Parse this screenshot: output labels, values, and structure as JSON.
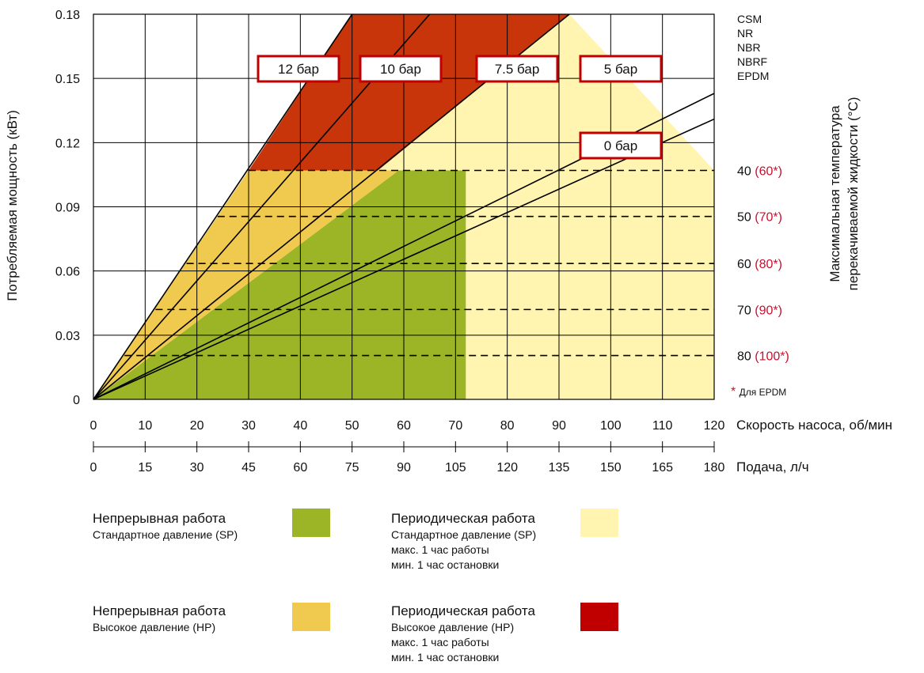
{
  "chart_data": {
    "type": "line",
    "ylabel": "Потребляемая мощность (кВт)",
    "xlabel": "Скорость насоса, об/мин",
    "x2label": "Подача, л/ч",
    "right_label_line1": "Максимальная температура",
    "right_label_line2": "перекачиваемой жидкости (°C)",
    "ylim": [
      0,
      0.18
    ],
    "xlim": [
      0,
      120
    ],
    "y_ticks": [
      "0",
      "0.03",
      "0.06",
      "0.09",
      "0.12",
      "0.15",
      "0.18"
    ],
    "x_ticks": [
      "0",
      "10",
      "20",
      "30",
      "40",
      "50",
      "60",
      "70",
      "80",
      "90",
      "100",
      "110",
      "120"
    ],
    "x2_ticks": [
      "0",
      "15",
      "30",
      "45",
      "60",
      "75",
      "90",
      "105",
      "120",
      "135",
      "150",
      "165",
      "180"
    ],
    "grid": true,
    "series": [
      {
        "name": "12 бар",
        "x": [
          0,
          50
        ],
        "y": [
          0,
          0.18
        ]
      },
      {
        "name": "10 бар",
        "x": [
          0,
          65
        ],
        "y": [
          0,
          0.18
        ]
      },
      {
        "name": "7.5 бар",
        "x": [
          0,
          92
        ],
        "y": [
          0,
          0.18
        ]
      },
      {
        "name": "5 бар",
        "x": [
          0,
          120
        ],
        "y": [
          0,
          0.143
        ]
      },
      {
        "name": "0 бар",
        "x": [
          0,
          120
        ],
        "y": [
          0,
          0.131
        ]
      }
    ],
    "regions": [
      {
        "name": "continuous_sp",
        "color": "#9bb527",
        "points": [
          [
            0,
            0
          ],
          [
            72,
            0
          ],
          [
            72,
            0.107
          ],
          [
            59,
            0.107
          ]
        ]
      },
      {
        "name": "continuous_hp",
        "color": "#f0c94f",
        "points": [
          [
            0,
            0
          ],
          [
            59,
            0.107
          ],
          [
            30,
            0.107
          ]
        ]
      },
      {
        "name": "periodic_sp",
        "color": "#fff4b0",
        "points": [
          [
            72,
            0
          ],
          [
            120,
            0
          ],
          [
            120,
            0.107
          ],
          [
            92,
            0.18
          ],
          [
            65,
            0.18
          ],
          [
            55,
            0.107
          ],
          [
            72,
            0.107
          ]
        ]
      },
      {
        "name": "periodic_hp",
        "color": "#c8350a",
        "points": [
          [
            30,
            0.107
          ],
          [
            50,
            0.18
          ],
          [
            92,
            0.18
          ],
          [
            55,
            0.107
          ]
        ]
      }
    ],
    "temperature_limits": [
      {
        "y": 0.107,
        "x_start": 30,
        "label": "40",
        "epdm": "(60*)"
      },
      {
        "y": 0.0855,
        "x_start": 24,
        "label": "50",
        "epdm": "(70*)"
      },
      {
        "y": 0.0635,
        "x_start": 18,
        "label": "60",
        "epdm": "(80*)"
      },
      {
        "y": 0.042,
        "x_start": 12,
        "label": "70",
        "epdm": "(90*)"
      },
      {
        "y": 0.0205,
        "x_start": 6,
        "label": "80",
        "epdm": "(100*)"
      }
    ],
    "materials": [
      {
        "name": "CSM",
        "color": "#111111"
      },
      {
        "name": "NR",
        "color": "#111111"
      },
      {
        "name": "NBR",
        "color": "#111111"
      },
      {
        "name": "NBRF",
        "color": "#111111"
      },
      {
        "name": "EPDM",
        "color": "#c8102e"
      }
    ],
    "footnote_star": "*",
    "footnote_text": "Для EPDM"
  },
  "legend": {
    "continuous_sp": {
      "title": "Непрерывная работа",
      "lines": [
        "Стандартное давление (SP)"
      ],
      "color": "#9bb527"
    },
    "continuous_hp": {
      "title": "Непрерывная работа",
      "lines": [
        "Высокое давление (HP)"
      ],
      "color": "#f0c94f"
    },
    "periodic_sp": {
      "title": "Периодическая работа",
      "lines": [
        "Стандартное давление (SP)",
        "макс. 1 час работы",
        "мин. 1 час остановки"
      ],
      "color": "#fff4b0"
    },
    "periodic_hp": {
      "title": "Периодическая работа",
      "lines": [
        "Высокое давление (HP)",
        "макс. 1 час работы",
        "мин. 1 час остановки"
      ],
      "color": "#c00000"
    }
  },
  "colors": {
    "accent_red": "#c8102e",
    "grid": "#000000"
  }
}
